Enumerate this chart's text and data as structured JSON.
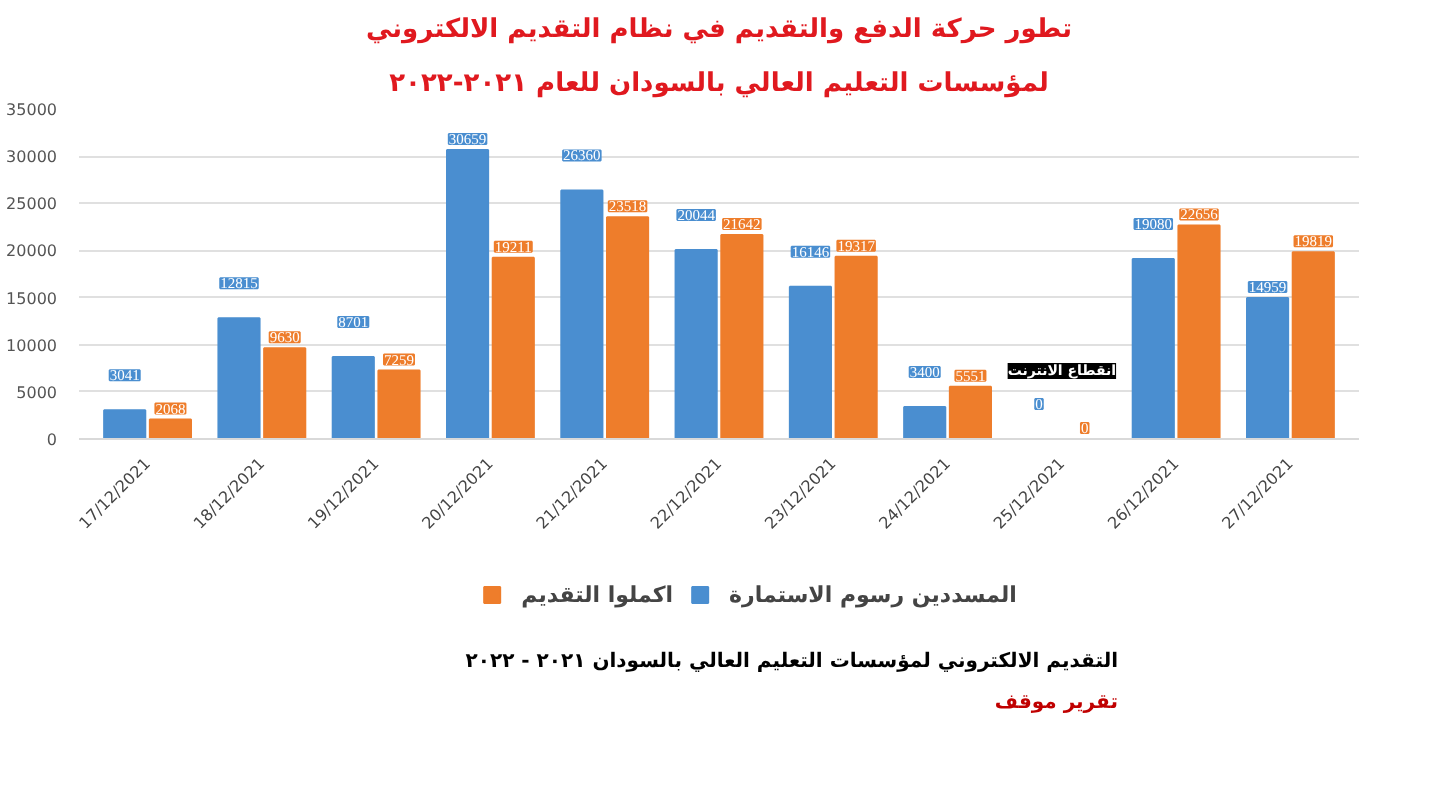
{
  "chart_data": {
    "type": "bar",
    "title": "تطور حركة الدفع والتقديم في نظام التقديم الالكتروني",
    "subtitle": "لمؤسسات التعليم العالي بالسودان للعام ٢٠٢١-٢٠٢٢",
    "categories": [
      "17/12/2021",
      "18/12/2021",
      "19/12/2021",
      "20/12/2021",
      "21/12/2021",
      "22/12/2021",
      "23/12/2021",
      "24/12/2021",
      "25/12/2021",
      "26/12/2021",
      "27/12/2021"
    ],
    "series": [
      {
        "name": "المسددين رسوم الاستمارة",
        "color": "#4a8ed0",
        "values": [
          3041,
          12815,
          8701,
          30659,
          26360,
          20044,
          16146,
          3400,
          0,
          19080,
          14959
        ]
      },
      {
        "name": "اكملوا التقديم",
        "color": "#ee7d2b",
        "values": [
          2068,
          9630,
          7259,
          19211,
          23518,
          21642,
          19317,
          5551,
          0,
          22656,
          19819
        ]
      }
    ],
    "ylim": [
      0,
      35000
    ],
    "yticks": [
      0,
      5000,
      10000,
      15000,
      20000,
      25000,
      30000,
      35000
    ],
    "grid": "y",
    "legend": "bottom",
    "data_labels": true,
    "annotations": [
      "انقطاع الانترنت",
      "التقديم الالكتروني لمؤسسات التعليم العالي بالسودان ٢٠٢١ - ٢٠٢٢",
      "تقرير موقف"
    ]
  }
}
